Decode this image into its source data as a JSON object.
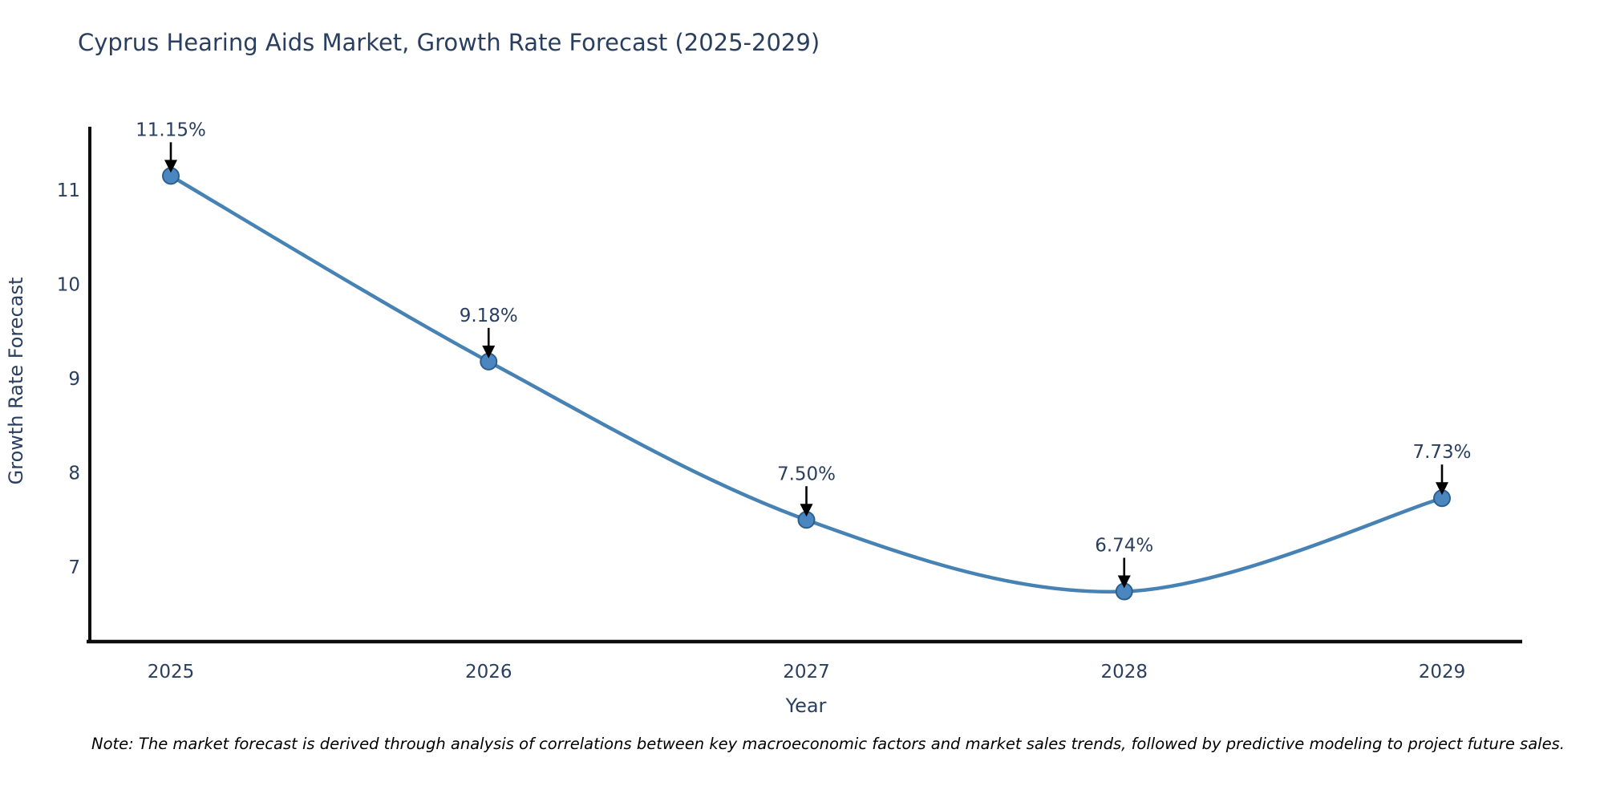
{
  "title": "Cyprus Hearing Aids Market, Growth Rate Forecast (2025-2029)",
  "note": "Note: The market forecast is derived through analysis of correlations between key macroeconomic factors and market sales trends, followed by predictive modeling to project future sales.",
  "chart_data": {
    "type": "line",
    "title": "Cyprus Hearing Aids Market, Growth Rate Forecast (2025-2029)",
    "categories": [
      "2025",
      "2026",
      "2027",
      "2028",
      "2029"
    ],
    "values": [
      11.15,
      9.18,
      7.5,
      6.74,
      7.73
    ],
    "point_labels": [
      "11.15%",
      "9.18%",
      "7.50%",
      "6.74%",
      "7.73%"
    ],
    "xlabel": "Year",
    "ylabel": "Growth Rate Forecast",
    "yticks": [
      "11",
      "10",
      "9",
      "8",
      "7"
    ],
    "ytick_values": [
      11,
      10,
      9,
      8,
      7
    ],
    "ylim": [
      6.2,
      11.66
    ],
    "line_shape": "spline",
    "grid": false,
    "legend": "none",
    "annotations_have_arrows": true,
    "colors": {
      "line": "#4682b4",
      "marker_fill": "#4a87c1",
      "marker_edge": "#2d5f8d",
      "axis_line": "#0d0d0d",
      "text": "#2a3f5f",
      "arrow": "#000000",
      "note_text": "#000000"
    }
  }
}
